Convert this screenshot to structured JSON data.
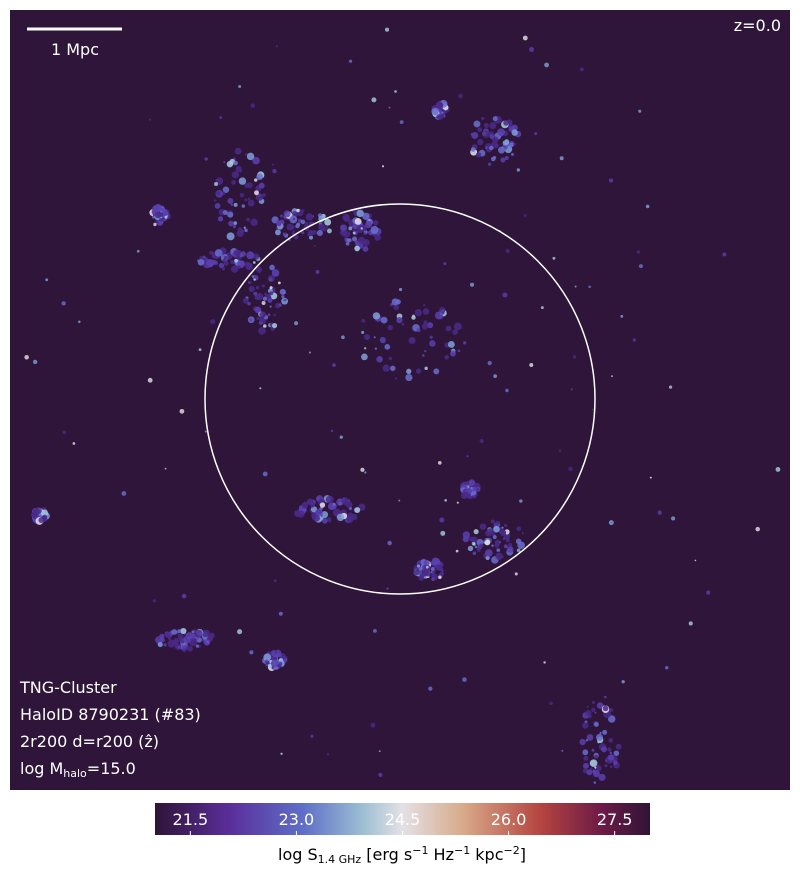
{
  "map": {
    "scale_bar_label": "1 Mpc",
    "redshift": "z=0.0",
    "info": {
      "simulation": "TNG-Cluster",
      "halo": "HaloID 8790231 (#83)",
      "projection": "2r200 d=r200 (ẑ)",
      "mass": [
        "log M",
        "halo",
        "=15.0"
      ]
    }
  },
  "colorbar": {
    "lim": [
      21,
      28
    ],
    "ticks": [
      21.5,
      {
        "value": 23,
        "label": "23.0"
      },
      24.5,
      {
        "value": 26,
        "label": "26.0"
      },
      27.5
    ],
    "label": [
      "log S",
      "1.4 GHz",
      " [erg s",
      "−1",
      " Hz",
      "−1",
      " kpc",
      "−2",
      "]"
    ]
  }
}
